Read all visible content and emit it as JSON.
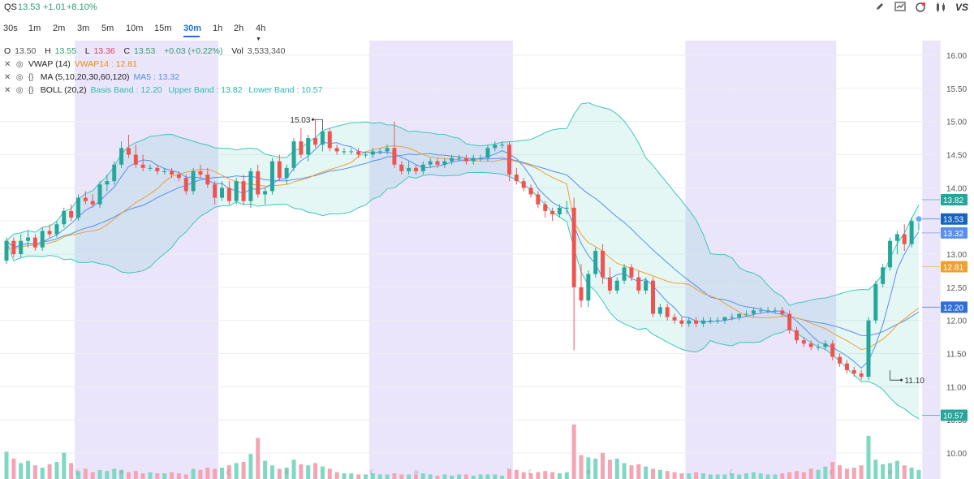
{
  "header": {
    "symbol": "QS",
    "price": "13.53",
    "change": "+1.01",
    "change_pct": "+8.10%",
    "logo_text": "VS",
    "icons": [
      "pencil-icon",
      "chart-icon",
      "alert-icon",
      "candles-icon"
    ]
  },
  "timeframes": [
    "30s",
    "1m",
    "2m",
    "3m",
    "5m",
    "10m",
    "15m",
    "30m",
    "1h",
    "2h",
    "4h"
  ],
  "active_timeframe": "30m",
  "ohlc": {
    "o_label": "O",
    "o": "13.50",
    "h_label": "H",
    "h": "13.55",
    "l_label": "L",
    "l": "13.36",
    "c_label": "C",
    "c": "13.53",
    "chg": "+0.03 (+0.22%)",
    "vol_label": "Vol",
    "vol": "3,533,340"
  },
  "indicators": [
    {
      "name": "VWAP (14)",
      "value_text": "VWAP14 : 12.81"
    },
    {
      "name": "MA (5,10,20,30,60,120)",
      "value_text": "MA5 : 13.32"
    },
    {
      "name": "BOLL (20,2)",
      "basis": "Basis Band : 12.20",
      "upper": "Upper Band : 13.82",
      "lower": "Lower Band : 10.57"
    }
  ],
  "colors": {
    "up": "#26a69a",
    "down": "#ef5350",
    "vwap": "#f0a030",
    "ma": "#5b8dee",
    "boll": "#3fc7b8",
    "session_shade": "#e8e0fb",
    "active_tab": "#1e6fd9"
  },
  "chart_data": {
    "type": "candlestick",
    "y_ticks": [
      "16.00",
      "15.50",
      "15.00",
      "14.50",
      "14.00",
      "13.50",
      "13.00",
      "12.50",
      "12.00",
      "11.50",
      "11.00",
      "10.50",
      "10.00"
    ],
    "ylim": [
      9.95,
      16.05
    ],
    "annotations": [
      {
        "label": "15.03",
        "price": 15.03,
        "bar": 44
      },
      {
        "label": "11.10",
        "price": 11.1,
        "bar": 123
      }
    ],
    "price_tags": [
      {
        "label": "13.82",
        "price": 13.82,
        "color": "#26a69a"
      },
      {
        "label": "13.53",
        "price": 13.53,
        "color": "#1565c0"
      },
      {
        "label": "13.32",
        "price": 13.32,
        "color": "#5b8dee"
      },
      {
        "label": "12.81",
        "price": 12.81,
        "color": "#f0a030"
      },
      {
        "label": "12.20",
        "price": 12.2,
        "color": "#2f6fd6"
      },
      {
        "label": "10.57",
        "price": 10.57,
        "color": "#26a69a"
      }
    ],
    "session_shading_bars": [
      [
        10,
        30
      ],
      [
        51,
        60
      ],
      [
        60,
        71
      ],
      [
        95,
        101
      ],
      [
        101,
        116
      ],
      [
        128,
        131
      ]
    ],
    "session_icons": [
      {
        "bar": 10,
        "icon": "moon"
      },
      {
        "bar": 16,
        "icon": "sun"
      },
      {
        "bar": 31,
        "icon": "moon"
      },
      {
        "bar": 39,
        "icon": "sun"
      },
      {
        "bar": 51,
        "icon": "moon"
      },
      {
        "bar": 57,
        "icon": "sun"
      },
      {
        "bar": 73,
        "icon": "moon"
      },
      {
        "bar": 81,
        "icon": "sun"
      },
      {
        "bar": 101,
        "icon": "moon"
      },
      {
        "bar": 115,
        "icon": "moon"
      },
      {
        "bar": 123,
        "icon": "sun"
      }
    ],
    "candles": [
      [
        12.9,
        13.25,
        12.85,
        13.2
      ],
      [
        13.2,
        13.25,
        12.95,
        13.0
      ],
      [
        13.0,
        13.3,
        12.95,
        13.2
      ],
      [
        13.2,
        13.35,
        13.1,
        13.25
      ],
      [
        13.25,
        13.3,
        13.05,
        13.1
      ],
      [
        13.1,
        13.4,
        13.05,
        13.35
      ],
      [
        13.35,
        13.45,
        13.25,
        13.3
      ],
      [
        13.3,
        13.5,
        13.25,
        13.45
      ],
      [
        13.45,
        13.7,
        13.4,
        13.65
      ],
      [
        13.65,
        13.75,
        13.5,
        13.55
      ],
      [
        13.55,
        13.9,
        13.5,
        13.85
      ],
      [
        13.85,
        13.95,
        13.75,
        13.8
      ],
      [
        13.8,
        13.9,
        13.7,
        13.75
      ],
      [
        13.75,
        14.1,
        13.7,
        14.05
      ],
      [
        14.05,
        14.2,
        13.95,
        14.1
      ],
      [
        14.1,
        14.4,
        14.05,
        14.35
      ],
      [
        14.35,
        14.7,
        14.3,
        14.6
      ],
      [
        14.6,
        14.8,
        14.45,
        14.5
      ],
      [
        14.5,
        14.65,
        14.3,
        14.35
      ],
      [
        14.35,
        14.5,
        14.25,
        14.3
      ],
      [
        14.3,
        14.35,
        14.25,
        14.3
      ],
      [
        14.3,
        14.35,
        14.2,
        14.25
      ],
      [
        14.25,
        14.3,
        14.2,
        14.25
      ],
      [
        14.25,
        14.3,
        14.15,
        14.2
      ],
      [
        14.2,
        14.25,
        14.1,
        14.15
      ],
      [
        14.15,
        14.2,
        13.9,
        13.95
      ],
      [
        13.95,
        14.3,
        13.9,
        14.25
      ],
      [
        14.25,
        14.35,
        14.15,
        14.2
      ],
      [
        14.2,
        14.3,
        14.0,
        14.05
      ],
      [
        14.05,
        14.1,
        13.75,
        13.85
      ],
      [
        13.85,
        14.1,
        13.8,
        14.0
      ],
      [
        14.0,
        14.1,
        13.75,
        13.8
      ],
      [
        13.8,
        14.15,
        13.75,
        14.1
      ],
      [
        14.1,
        14.2,
        13.75,
        13.8
      ],
      [
        13.8,
        14.3,
        13.7,
        14.25
      ],
      [
        14.25,
        14.35,
        13.85,
        13.9
      ],
      [
        13.9,
        14.0,
        13.75,
        13.95
      ],
      [
        13.95,
        14.45,
        13.9,
        14.4
      ],
      [
        14.4,
        14.5,
        14.1,
        14.15
      ],
      [
        14.15,
        14.35,
        14.05,
        14.3
      ],
      [
        14.3,
        14.75,
        14.25,
        14.7
      ],
      [
        14.7,
        14.9,
        14.45,
        14.5
      ],
      [
        14.5,
        14.8,
        14.4,
        14.75
      ],
      [
        14.75,
        15.03,
        14.6,
        14.65
      ],
      [
        14.65,
        14.9,
        14.55,
        14.85
      ],
      [
        14.85,
        14.9,
        14.55,
        14.6
      ],
      [
        14.6,
        14.65,
        14.5,
        14.55
      ],
      [
        14.55,
        14.6,
        14.5,
        14.55
      ],
      [
        14.55,
        14.6,
        14.5,
        14.55
      ],
      [
        14.55,
        14.6,
        14.45,
        14.5
      ],
      [
        14.5,
        14.55,
        14.45,
        14.5
      ],
      [
        14.5,
        14.6,
        14.45,
        14.55
      ],
      [
        14.55,
        14.6,
        14.5,
        14.55
      ],
      [
        14.55,
        14.65,
        14.5,
        14.6
      ],
      [
        14.6,
        15.0,
        14.3,
        14.35
      ],
      [
        14.35,
        14.4,
        14.2,
        14.25
      ],
      [
        14.25,
        14.4,
        14.2,
        14.3
      ],
      [
        14.3,
        14.35,
        14.2,
        14.25
      ],
      [
        14.25,
        14.4,
        14.2,
        14.35
      ],
      [
        14.35,
        14.45,
        14.3,
        14.4
      ],
      [
        14.4,
        14.45,
        14.3,
        14.35
      ],
      [
        14.35,
        14.45,
        14.3,
        14.4
      ],
      [
        14.4,
        14.5,
        14.35,
        14.45
      ],
      [
        14.45,
        14.5,
        14.4,
        14.45
      ],
      [
        14.45,
        14.5,
        14.35,
        14.4
      ],
      [
        14.4,
        14.5,
        14.35,
        14.45
      ],
      [
        14.45,
        14.5,
        14.4,
        14.45
      ],
      [
        14.45,
        14.65,
        14.4,
        14.6
      ],
      [
        14.6,
        14.7,
        14.55,
        14.65
      ],
      [
        14.65,
        14.7,
        14.6,
        14.65
      ],
      [
        14.65,
        14.7,
        14.1,
        14.2
      ],
      [
        14.2,
        14.3,
        14.05,
        14.1
      ],
      [
        14.1,
        14.15,
        13.95,
        14.0
      ],
      [
        14.0,
        14.05,
        13.85,
        13.9
      ],
      [
        13.9,
        13.95,
        13.7,
        13.75
      ],
      [
        13.75,
        13.8,
        13.55,
        13.65
      ],
      [
        13.65,
        13.7,
        13.5,
        13.6
      ],
      [
        13.6,
        13.75,
        13.55,
        13.7
      ],
      [
        13.7,
        13.8,
        13.6,
        13.7
      ],
      [
        13.7,
        13.85,
        11.55,
        12.5
      ],
      [
        12.5,
        12.85,
        12.2,
        12.3
      ],
      [
        12.3,
        12.75,
        12.2,
        12.7
      ],
      [
        12.7,
        13.1,
        12.65,
        13.05
      ],
      [
        13.05,
        13.15,
        12.55,
        12.65
      ],
      [
        12.65,
        12.8,
        12.4,
        12.45
      ],
      [
        12.45,
        12.65,
        12.4,
        12.6
      ],
      [
        12.6,
        12.85,
        12.55,
        12.8
      ],
      [
        12.8,
        12.85,
        12.6,
        12.65
      ],
      [
        12.65,
        12.75,
        12.4,
        12.45
      ],
      [
        12.45,
        12.65,
        12.4,
        12.6
      ],
      [
        12.6,
        12.65,
        12.05,
        12.1
      ],
      [
        12.1,
        12.25,
        12.05,
        12.2
      ],
      [
        12.2,
        12.25,
        12.0,
        12.05
      ],
      [
        12.05,
        12.1,
        11.95,
        12.0
      ],
      [
        12.0,
        12.05,
        11.9,
        11.95
      ],
      [
        11.95,
        12.05,
        11.9,
        12.0
      ],
      [
        12.0,
        12.05,
        11.9,
        11.95
      ],
      [
        11.95,
        12.05,
        11.9,
        12.0
      ],
      [
        12.0,
        12.05,
        11.95,
        12.0
      ],
      [
        12.0,
        12.05,
        11.95,
        12.0
      ],
      [
        12.0,
        12.05,
        11.95,
        12.05
      ],
      [
        12.05,
        12.1,
        12.0,
        12.05
      ],
      [
        12.05,
        12.1,
        12.0,
        12.1
      ],
      [
        12.1,
        12.15,
        12.05,
        12.1
      ],
      [
        12.1,
        12.2,
        12.05,
        12.15
      ],
      [
        12.15,
        12.2,
        12.1,
        12.15
      ],
      [
        12.15,
        12.2,
        12.1,
        12.15
      ],
      [
        12.15,
        12.2,
        12.1,
        12.15
      ],
      [
        12.15,
        12.2,
        12.05,
        12.1
      ],
      [
        12.1,
        12.15,
        11.8,
        11.85
      ],
      [
        11.85,
        11.9,
        11.65,
        11.7
      ],
      [
        11.7,
        11.75,
        11.6,
        11.65
      ],
      [
        11.65,
        11.7,
        11.55,
        11.6
      ],
      [
        11.6,
        11.65,
        11.55,
        11.6
      ],
      [
        11.6,
        11.7,
        11.55,
        11.65
      ],
      [
        11.65,
        11.7,
        11.4,
        11.45
      ],
      [
        11.45,
        11.5,
        11.3,
        11.35
      ],
      [
        11.35,
        11.4,
        11.2,
        11.25
      ],
      [
        11.25,
        11.3,
        11.15,
        11.2
      ],
      [
        11.2,
        11.25,
        11.1,
        11.15
      ],
      [
        11.15,
        12.05,
        11.1,
        12.0
      ],
      [
        12.0,
        12.6,
        11.95,
        12.55
      ],
      [
        12.55,
        12.85,
        12.5,
        12.8
      ],
      [
        12.8,
        13.25,
        12.75,
        13.2
      ],
      [
        13.2,
        13.35,
        13.0,
        13.3
      ],
      [
        13.3,
        13.45,
        13.05,
        13.15
      ],
      [
        13.15,
        13.55,
        13.1,
        13.5
      ],
      [
        13.5,
        13.55,
        13.36,
        13.53
      ]
    ],
    "volumes": [
      2.4,
      1.8,
      1.4,
      1.6,
      1.2,
      1.0,
      1.3,
      1.5,
      2.3,
      1.4,
      0.7,
      0.9,
      0.6,
      0.8,
      0.7,
      0.9,
      0.8,
      0.6,
      0.7,
      0.5,
      0.6,
      0.5,
      0.5,
      0.6,
      0.5,
      0.4,
      0.9,
      0.8,
      1.0,
      0.9,
      1.0,
      1.2,
      1.4,
      1.5,
      2.2,
      3.6,
      1.6,
      1.2,
      0.9,
      1.0,
      1.7,
      1.3,
      1.2,
      1.4,
      1.1,
      0.9,
      0.6,
      0.5,
      0.5,
      0.4,
      0.4,
      0.5,
      0.4,
      0.4,
      0.5,
      0.4,
      0.4,
      0.4,
      0.5,
      0.4,
      0.3,
      0.4,
      0.3,
      0.4,
      0.4,
      0.3,
      0.4,
      0.4,
      0.4,
      0.3,
      0.9,
      0.8,
      0.6,
      0.5,
      0.6,
      0.7,
      0.6,
      0.5,
      0.6,
      4.8,
      2.1,
      1.9,
      1.8,
      2.3,
      1.7,
      1.8,
      1.4,
      1.2,
      1.3,
      1.1,
      0.9,
      0.8,
      0.7,
      0.6,
      0.5,
      0.5,
      0.6,
      0.5,
      0.4,
      0.4,
      0.4,
      0.5,
      0.4,
      0.5,
      0.6,
      0.5,
      0.4,
      0.4,
      0.5,
      0.6,
      0.7,
      0.6,
      0.9,
      0.8,
      1.1,
      1.5,
      1.2,
      0.9,
      1.0,
      1.2,
      3.8,
      1.7,
      1.3,
      1.4,
      1.6,
      1.2,
      1.0,
      0.8
    ]
  }
}
